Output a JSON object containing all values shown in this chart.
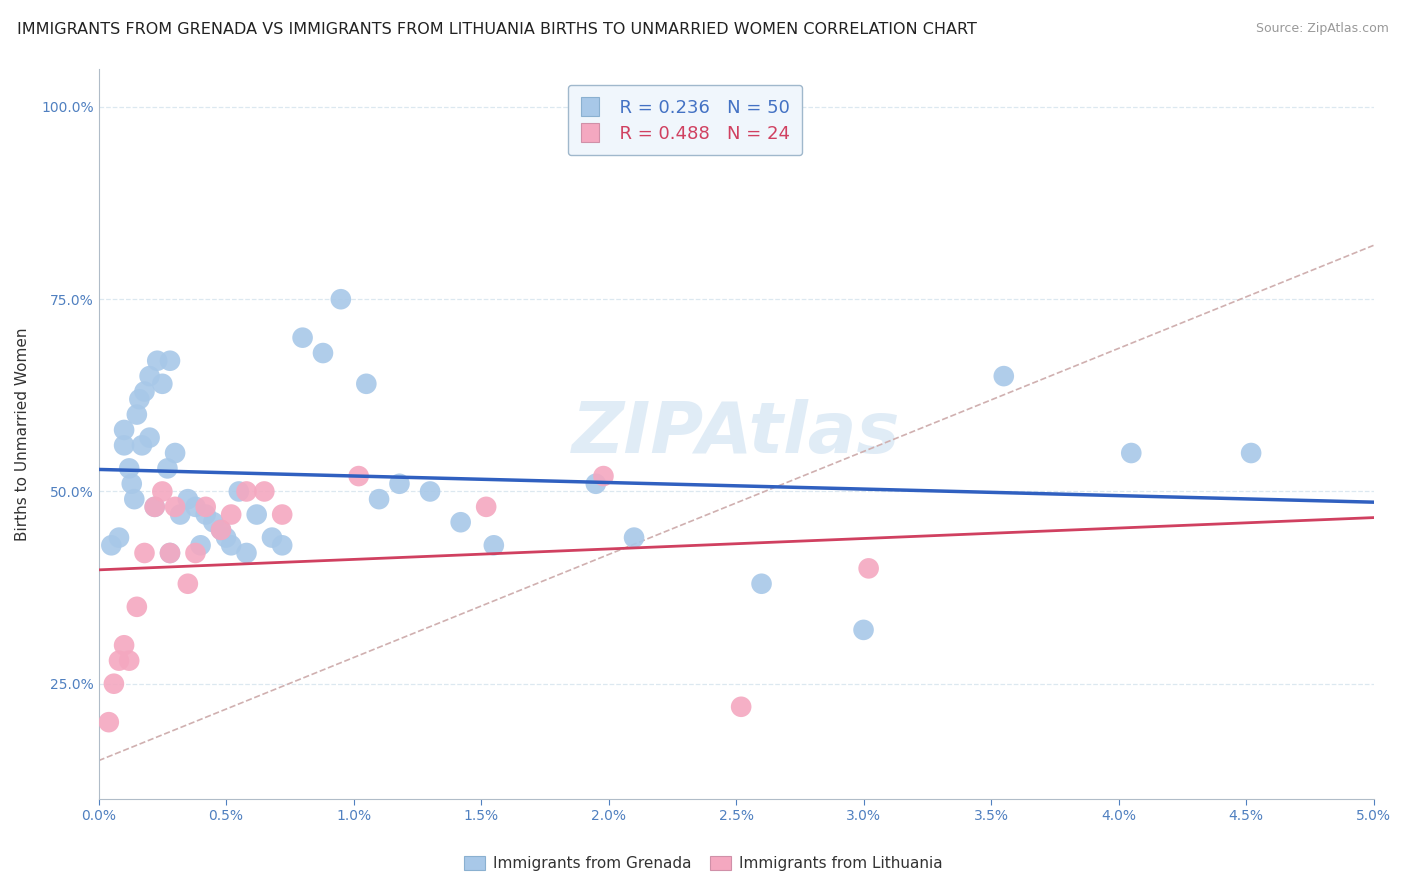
{
  "title": "IMMIGRANTS FROM GRENADA VS IMMIGRANTS FROM LITHUANIA BIRTHS TO UNMARRIED WOMEN CORRELATION CHART",
  "source": "Source: ZipAtlas.com",
  "ylabel": "Births to Unmarried Women",
  "grenada_R": 0.236,
  "grenada_N": 50,
  "lithuania_R": 0.488,
  "lithuania_N": 24,
  "grenada_color": "#a8c8e8",
  "lithuania_color": "#f4a8c0",
  "grenada_line_color": "#3060c0",
  "lithuania_line_color": "#d04060",
  "diagonal_line_color": "#d0b0b0",
  "background_color": "#ffffff",
  "grid_color": "#dce8f0",
  "title_fontsize": 11.5,
  "axis_label_fontsize": 11,
  "tick_fontsize": 10,
  "xlim": [
    0.0,
    5.0
  ],
  "ylim": [
    10.0,
    105.0
  ],
  "yticks": [
    25.0,
    50.0,
    75.0,
    100.0
  ],
  "xticks": [
    0.0,
    0.5,
    1.0,
    1.5,
    2.0,
    2.5,
    3.0,
    3.5,
    4.0,
    4.5,
    5.0
  ],
  "grenada_x": [
    0.05,
    0.08,
    0.1,
    0.1,
    0.12,
    0.13,
    0.14,
    0.15,
    0.16,
    0.17,
    0.18,
    0.2,
    0.2,
    0.22,
    0.23,
    0.25,
    0.27,
    0.28,
    0.28,
    0.3,
    0.32,
    0.35,
    0.38,
    0.4,
    0.42,
    0.45,
    0.48,
    0.5,
    0.52,
    0.55,
    0.58,
    0.62,
    0.68,
    0.72,
    0.8,
    0.88,
    0.95,
    1.05,
    1.1,
    1.18,
    1.3,
    1.42,
    1.55,
    1.95,
    2.1,
    2.6,
    3.0,
    3.55,
    4.05,
    4.52
  ],
  "grenada_y": [
    43,
    44,
    58,
    56,
    53,
    51,
    49,
    60,
    62,
    56,
    63,
    65,
    57,
    48,
    67,
    64,
    53,
    67,
    42,
    55,
    47,
    49,
    48,
    43,
    47,
    46,
    45,
    44,
    43,
    50,
    42,
    47,
    44,
    43,
    70,
    68,
    75,
    64,
    49,
    51,
    50,
    46,
    43,
    51,
    44,
    38,
    32,
    65,
    55,
    55
  ],
  "lithuania_x": [
    0.04,
    0.06,
    0.08,
    0.1,
    0.12,
    0.15,
    0.18,
    0.22,
    0.25,
    0.28,
    0.3,
    0.35,
    0.38,
    0.42,
    0.48,
    0.52,
    0.58,
    0.65,
    0.72,
    1.02,
    1.52,
    1.98,
    2.52,
    3.02
  ],
  "lithuania_y": [
    20,
    25,
    28,
    30,
    28,
    35,
    42,
    48,
    50,
    42,
    48,
    38,
    42,
    48,
    45,
    47,
    50,
    50,
    47,
    52,
    48,
    52,
    22,
    40
  ],
  "watermark_color": "#c8ddf0",
  "watermark_alpha": 0.55,
  "tick_color": "#5080c0"
}
